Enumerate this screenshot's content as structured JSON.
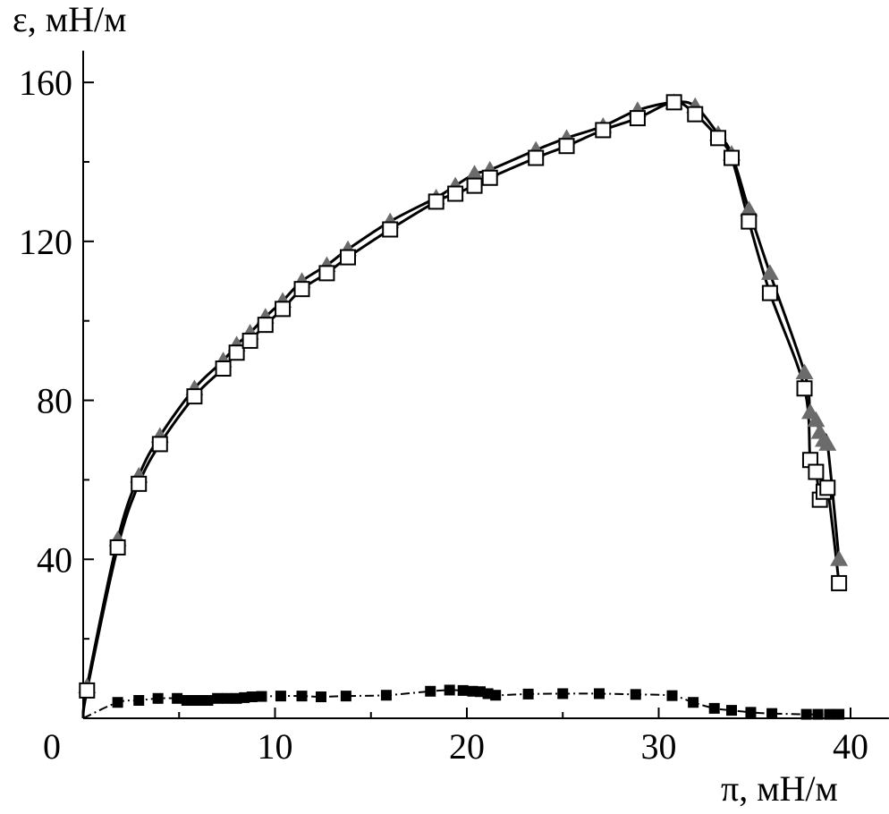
{
  "chart_data": {
    "type": "line",
    "title": "",
    "xlabel": "π, мН/м",
    "ylabel": "ε, мН/м",
    "xlim": [
      -1.5,
      42
    ],
    "ylim": [
      0,
      168
    ],
    "x_ticks": [
      0,
      10,
      20,
      30,
      40
    ],
    "y_ticks": [
      40,
      80,
      120,
      160
    ],
    "x_tick_labels": [
      "0",
      "10",
      "20",
      "30",
      "40"
    ],
    "y_tick_labels": [
      "40",
      "80",
      "120",
      "160"
    ],
    "grid": false,
    "legend": "none",
    "series": [
      {
        "marker": "triangle",
        "color": "#6b6b6b",
        "x": [
          0.2,
          1.8,
          2.9,
          4.0,
          5.8,
          7.3,
          8.0,
          8.7,
          9.5,
          10.4,
          11.4,
          12.7,
          13.8,
          16.0,
          18.4,
          19.4,
          20.4,
          21.2,
          23.6,
          25.2,
          27.1,
          28.9,
          30.8,
          31.9,
          33.1,
          33.8,
          34.7,
          35.8,
          37.6,
          37.9,
          38.2,
          38.4,
          38.6,
          38.8,
          39.4
        ],
        "y": [
          8,
          45,
          61,
          71,
          83,
          90,
          94,
          97,
          101,
          105,
          110,
          114,
          118,
          125,
          131,
          134,
          137,
          138,
          143,
          146,
          149,
          153,
          155,
          154,
          147,
          142,
          128,
          112,
          87,
          77,
          75,
          72,
          70,
          69,
          40
        ]
      },
      {
        "marker": "open-square",
        "color": "#000000",
        "x": [
          0.2,
          1.8,
          2.9,
          4.0,
          5.8,
          7.3,
          8.0,
          8.7,
          9.5,
          10.4,
          11.4,
          12.7,
          13.8,
          16.0,
          18.4,
          19.4,
          20.4,
          21.2,
          23.6,
          25.2,
          27.1,
          28.9,
          30.8,
          31.9,
          33.1,
          33.8,
          34.7,
          35.8,
          37.6,
          37.9,
          38.2,
          38.4,
          38.6,
          38.8,
          39.4
        ],
        "y": [
          7,
          43,
          59,
          69,
          81,
          88,
          92,
          95,
          99,
          103,
          108,
          112,
          116,
          123,
          130,
          132,
          134,
          136,
          141,
          144,
          148,
          151,
          155,
          152,
          146,
          141,
          125,
          107,
          83,
          65,
          62,
          55,
          57,
          58,
          34
        ]
      },
      {
        "marker": "filled-square",
        "color": "#000000",
        "x": [
          1.8,
          2.9,
          3.9,
          4.9,
          5.4,
          5.7,
          6.1,
          6.5,
          7.0,
          7.5,
          8.0,
          8.4,
          8.8,
          9.3,
          10.3,
          11.4,
          12.4,
          13.7,
          15.8,
          18.1,
          19.1,
          19.8,
          20.3,
          20.7,
          21.1,
          21.5,
          23.2,
          25.0,
          26.9,
          28.8,
          30.7,
          31.8,
          32.9,
          33.8,
          34.8,
          35.9,
          37.7,
          38.3,
          38.9,
          39.4
        ],
        "y": [
          4,
          4.5,
          5,
          5,
          4.5,
          4.5,
          4.5,
          4.5,
          5,
          5,
          5,
          5.2,
          5.4,
          5.5,
          5.6,
          5.6,
          5.4,
          5.6,
          5.8,
          6.8,
          7.1,
          7.0,
          6.8,
          6.7,
          6.2,
          5.8,
          6.1,
          6.2,
          6.2,
          6.0,
          5.7,
          4.0,
          2.5,
          2.0,
          1.5,
          1.2,
          1.0,
          1.0,
          1.0,
          1.0
        ]
      }
    ]
  }
}
